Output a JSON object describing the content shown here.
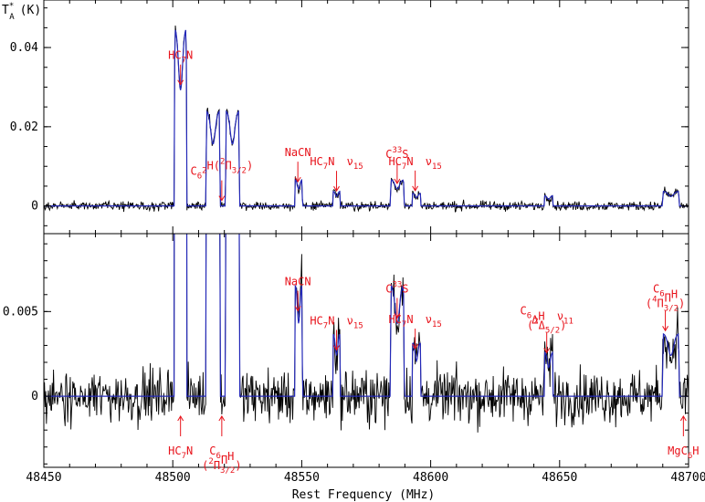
{
  "chart_data": {
    "type": "line",
    "xlabel": "Rest Frequency (MHz)",
    "ylabel_top": "T",
    "ylabel_top_sup": "*",
    "ylabel_top_sub": "A",
    "ylabel_top_unit": "(K)",
    "xlim": [
      48450,
      48700
    ],
    "x_ticks": [
      "48450",
      "48500",
      "48550",
      "48600",
      "48650",
      "48700"
    ],
    "panels": [
      {
        "ylim": [
          -0.007,
          0.052
        ],
        "y_ticks": [
          {
            "v": 0,
            "label": "0"
          },
          {
            "v": 0.02,
            "label": "0.02"
          },
          {
            "v": 0.04,
            "label": "0.04"
          }
        ],
        "series": [
          {
            "kind": "observed",
            "color": "#000000"
          },
          {
            "kind": "model",
            "color": "#2328b8"
          }
        ]
      },
      {
        "ylim": [
          -0.0042,
          0.0096
        ],
        "y_ticks": [
          {
            "v": 0,
            "label": "0"
          },
          {
            "v": 0.005,
            "label": "0.005"
          }
        ],
        "series": [
          {
            "kind": "observed",
            "color": "#000000"
          },
          {
            "kind": "model",
            "color": "#2328b8"
          }
        ]
      }
    ],
    "lines": [
      {
        "x0": 48500.5,
        "x1": 48505.5,
        "peak": 0.045
      },
      {
        "x0": 48512.8,
        "x1": 48518.4,
        "peak": 0.024
      },
      {
        "x0": 48520.4,
        "x1": 48525.9,
        "peak": 0.024
      },
      {
        "x0": 48547.3,
        "x1": 48550.3,
        "peak": 0.0066
      },
      {
        "x0": 48562.0,
        "x1": 48565.0,
        "peak": 0.0037
      },
      {
        "x0": 48584.3,
        "x1": 48589.8,
        "peak": 0.0066
      },
      {
        "x0": 48592.8,
        "x1": 48596.2,
        "peak": 0.0032
      },
      {
        "x0": 48644.0,
        "x1": 48647.5,
        "peak": 0.0026
      },
      {
        "x0": 48689.8,
        "x1": 48696.5,
        "peak": 0.0037
      }
    ],
    "noise_rms": {
      "top": 0.0008,
      "bottom": 0.0011
    },
    "annotations": {
      "top": [
        {
          "label": "HC",
          "sub": "7",
          "tail": "N",
          "x": 48503
        },
        {
          "label": "C",
          "sub": "6",
          "mid": "H(",
          "sup": "2",
          "mid2": "Π",
          "sub2": "3/2",
          "tail": ")",
          "x": 48519
        },
        {
          "label": "NaCN",
          "x": 48548.5
        },
        {
          "label": "HC",
          "sub": "7",
          "tail": "N",
          "nu": "ν",
          "nusub": "15",
          "x": 48563.5
        },
        {
          "label": "C",
          "sup": "33",
          "tail": "S",
          "x": 48587
        },
        {
          "label": "HC",
          "sub": "7",
          "tail": "N",
          "nu": "ν",
          "nusub": "15",
          "x": 48594
        }
      ],
      "bottom": [
        {
          "label": "NaCN",
          "x": 48548.5
        },
        {
          "label": "HC",
          "sub": "7",
          "tail": "N",
          "nu": "ν",
          "nusub": "15",
          "x": 48563.5
        },
        {
          "label": "C",
          "sup": "33",
          "tail": "S",
          "x": 48587
        },
        {
          "label": "HC",
          "sub": "7",
          "tail": "N",
          "nu": "ν",
          "nusub": "15",
          "x": 48594
        },
        {
          "label": "C",
          "sub": "6",
          "tail": "H",
          "nu": "ν",
          "nusub": "11",
          "line2": "(",
          "sup2": "2",
          "mid2": "Δ",
          "sub2": "5/2",
          "tail2": ")",
          "x": 48645
        },
        {
          "label": "C",
          "sub": "6",
          "tail": "H",
          "line2": "(",
          "sup2": "4",
          "mid2": "Π",
          "sub2": "3/2",
          "tail2": ")",
          "x": 48691
        },
        {
          "label": "HC",
          "sub": "7",
          "tail": "N",
          "x": 48503,
          "below": true
        },
        {
          "label": "C",
          "sub": "6",
          "tail": "H",
          "line2": "(",
          "sup2": "2",
          "mid2": "Π",
          "sub2": "3/2",
          "tail2": ")",
          "x": 48519,
          "below": true
        },
        {
          "label": "MgC",
          "sub": "6",
          "tail": "H",
          "x": 48698,
          "below": true
        }
      ]
    }
  }
}
